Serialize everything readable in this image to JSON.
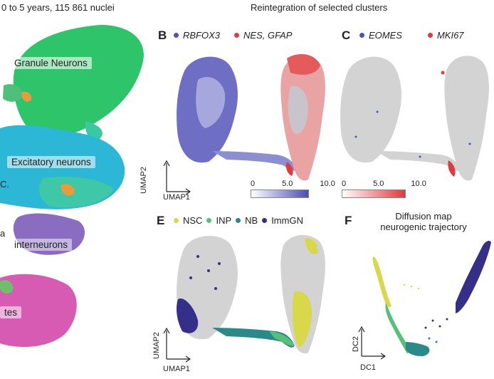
{
  "panel_a": {
    "title": "0 to 5 years, 115 861 nuclei",
    "labels": {
      "granule": "Granule Neurons",
      "excitatory": "Excitatory neurons",
      "interneurons": "interneurons",
      "left_partial_1": "C.",
      "left_partial_2": "a",
      "bottom_partial": "tes"
    }
  },
  "header": {
    "reintegration_title": "Reintegration of selected clusters"
  },
  "panel_b": {
    "letter": "B",
    "legend": [
      {
        "label": "RBFOX3",
        "color": "#4a56b0"
      },
      {
        "label": "NES, GFAP",
        "color": "#e0393e"
      }
    ],
    "axis_y": "UMAP2",
    "axis_x": "UMAP1",
    "colorbar": {
      "ticks": [
        "0",
        "5.0",
        "10.0"
      ],
      "from": "#ffffff",
      "to": "#4a4fb3"
    }
  },
  "panel_c": {
    "letter": "C",
    "legend": [
      {
        "label": "EOMES",
        "color": "#4a56b0"
      },
      {
        "label": "MKI67",
        "color": "#e0393e"
      }
    ],
    "colorbar": {
      "ticks": [
        "0",
        "5.0",
        "10.0"
      ],
      "from": "#ffffff",
      "to": "#e0393e"
    }
  },
  "panel_e": {
    "letter": "E",
    "legend": [
      {
        "label": "NSC",
        "color": "#d8d84a"
      },
      {
        "label": "INP",
        "color": "#55c07a"
      },
      {
        "label": "NB",
        "color": "#2a8a8a"
      },
      {
        "label": "ImmGN",
        "color": "#352f8a"
      }
    ],
    "axis_y": "UMAP2",
    "axis_x": "UMAP1"
  },
  "panel_f": {
    "letter": "F",
    "title_line1": "Diffusion map",
    "title_line2": "neurogenic trajectory",
    "axis_y": "DC2",
    "axis_x": "DC1"
  },
  "colors": {
    "granule": "#2ec46a",
    "excitatory": "#2cb7d6",
    "interneurons": "#8a6cc0",
    "astro": "#d85bb3",
    "grey": "#d3d3d3"
  }
}
